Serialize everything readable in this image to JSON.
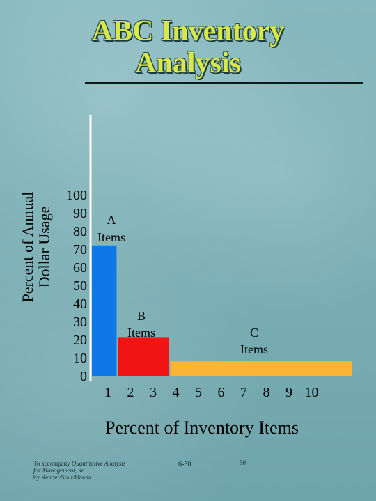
{
  "slide": {
    "title_line1": "ABC Inventory",
    "title_line2": "Analysis",
    "footer_left_line1": "To accompany",
    "footer_left_line1_italic": "Quantitative Analysis",
    "footer_left_line2_italic": "for Management, 9e",
    "footer_left_line3": "by Render/Stair/Hanna",
    "footer_mid": "6-50",
    "footer_right": "50"
  },
  "chart_data": {
    "type": "bar",
    "title": "ABC Inventory Analysis",
    "xlabel": "Percent of Inventory Items",
    "ylabel_line1": "Percent of Annual",
    "ylabel_line2": "Dollar Usage",
    "ylim": [
      0,
      100
    ],
    "xlim": [
      0,
      10
    ],
    "yticks": [
      "0",
      "10",
      "20",
      "30",
      "40",
      "50",
      "60",
      "70",
      "80",
      "90",
      "100"
    ],
    "xticks": [
      "1",
      "2",
      "3",
      "4",
      "5",
      "6",
      "7",
      "8",
      "9",
      "10"
    ],
    "grid": false,
    "legend": "none",
    "bars": [
      {
        "label_line1": "A",
        "label_line2": "Items",
        "x_start": 0,
        "x_end": 1,
        "value": 72,
        "color": "#0f78e8"
      },
      {
        "label_line1": "B",
        "label_line2": "Items",
        "x_start": 1,
        "x_end": 3,
        "value": 21,
        "color": "#f01414"
      },
      {
        "label_line1": "C",
        "label_line2": "Items",
        "x_start": 3,
        "x_end": 10,
        "value": 8,
        "color": "#fbb535"
      }
    ]
  }
}
